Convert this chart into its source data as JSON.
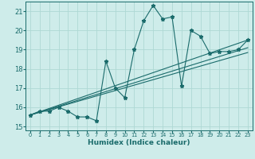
{
  "bg_color": "#ceecea",
  "grid_color": "#aed8d4",
  "line_color": "#1a6b6b",
  "xlabel": "Humidex (Indice chaleur)",
  "xlim": [
    -0.5,
    23.5
  ],
  "ylim": [
    14.8,
    21.5
  ],
  "yticks": [
    15,
    16,
    17,
    18,
    19,
    20,
    21
  ],
  "xticks": [
    0,
    1,
    2,
    3,
    4,
    5,
    6,
    7,
    8,
    9,
    10,
    11,
    12,
    13,
    14,
    15,
    16,
    17,
    18,
    19,
    20,
    21,
    22,
    23
  ],
  "series1_x": [
    0,
    1,
    2,
    3,
    4,
    5,
    6,
    7,
    8,
    9,
    10,
    11,
    12,
    13,
    14,
    15,
    16,
    17,
    18,
    19,
    20,
    21,
    22,
    23
  ],
  "series1_y": [
    15.6,
    15.8,
    15.8,
    16.0,
    15.8,
    15.5,
    15.5,
    15.3,
    18.4,
    17.0,
    16.5,
    19.0,
    20.5,
    21.3,
    20.6,
    20.7,
    17.1,
    20.0,
    19.7,
    18.8,
    18.9,
    18.9,
    19.0,
    19.5
  ],
  "series2_x": [
    0,
    23
  ],
  "series2_y": [
    15.6,
    19.5
  ],
  "series3_x": [
    0,
    23
  ],
  "series3_y": [
    15.6,
    19.1
  ],
  "series4_x": [
    0,
    23
  ],
  "series4_y": [
    15.6,
    18.85
  ],
  "marker": "*",
  "markersize": 3.5,
  "linewidth": 0.8
}
